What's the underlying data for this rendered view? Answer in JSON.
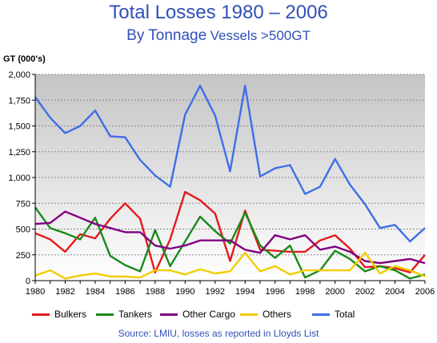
{
  "header": {
    "title": "Total Losses 1980 – 2006",
    "subtitle_a": "By Tonnage",
    "subtitle_b": "Vessels >500GT"
  },
  "axis": {
    "ylabel": "GT (000's)"
  },
  "source": "Source: LMIU, losses as reported in Lloyds List",
  "chart_data": {
    "type": "line",
    "title": "Total Losses 1980 – 2006",
    "subtitle": "By Tonnage Vessels >500GT",
    "xlabel": "",
    "ylabel": "GT (000's)",
    "ylim": [
      0,
      2000
    ],
    "xlim": [
      1980,
      2006
    ],
    "x": [
      1980,
      1981,
      1982,
      1983,
      1984,
      1985,
      1986,
      1987,
      1988,
      1989,
      1990,
      1991,
      1992,
      1993,
      1994,
      1995,
      1996,
      1997,
      1998,
      1999,
      2000,
      2001,
      2002,
      2003,
      2004,
      2005,
      2006
    ],
    "xticks": [
      "1980",
      "1982",
      "1984",
      "1986",
      "1988",
      "1990",
      "1992",
      "1994",
      "1996",
      "1998",
      "2000",
      "2002",
      "2004",
      "2006"
    ],
    "yticks": [
      "0",
      "250",
      "500",
      "750",
      "1,000",
      "1,250",
      "1,500",
      "1,750",
      "2,000"
    ],
    "grid": true,
    "legend_position": "bottom",
    "series": [
      {
        "name": "Bulkers",
        "color": "#e41a1c",
        "values": [
          460,
          400,
          280,
          450,
          410,
          600,
          750,
          600,
          80,
          400,
          860,
          780,
          650,
          190,
          680,
          300,
          290,
          280,
          280,
          390,
          440,
          310,
          130,
          140,
          120,
          80,
          250
        ]
      },
      {
        "name": "Tankers",
        "color": "#1a8a1a",
        "values": [
          710,
          510,
          460,
          400,
          610,
          240,
          150,
          90,
          490,
          140,
          380,
          620,
          480,
          360,
          660,
          340,
          220,
          340,
          30,
          100,
          290,
          210,
          90,
          140,
          100,
          20,
          60
        ]
      },
      {
        "name": "Other Cargo",
        "color": "#800080",
        "values": [
          550,
          560,
          670,
          610,
          550,
          510,
          470,
          470,
          340,
          310,
          340,
          390,
          390,
          390,
          300,
          270,
          440,
          400,
          440,
          300,
          330,
          280,
          190,
          170,
          190,
          210,
          170
        ]
      },
      {
        "name": "Others",
        "color": "#f2cc00",
        "values": [
          50,
          100,
          20,
          50,
          70,
          40,
          40,
          30,
          100,
          100,
          60,
          110,
          70,
          90,
          270,
          90,
          140,
          60,
          100,
          100,
          100,
          100,
          270,
          70,
          140,
          100,
          40
        ]
      },
      {
        "name": "Total",
        "color": "#3f6ee8",
        "values": [
          1780,
          1580,
          1430,
          1500,
          1650,
          1400,
          1390,
          1170,
          1020,
          910,
          1610,
          1890,
          1600,
          1060,
          1890,
          1010,
          1090,
          1120,
          840,
          910,
          1180,
          930,
          740,
          510,
          540,
          380,
          510
        ]
      }
    ]
  }
}
